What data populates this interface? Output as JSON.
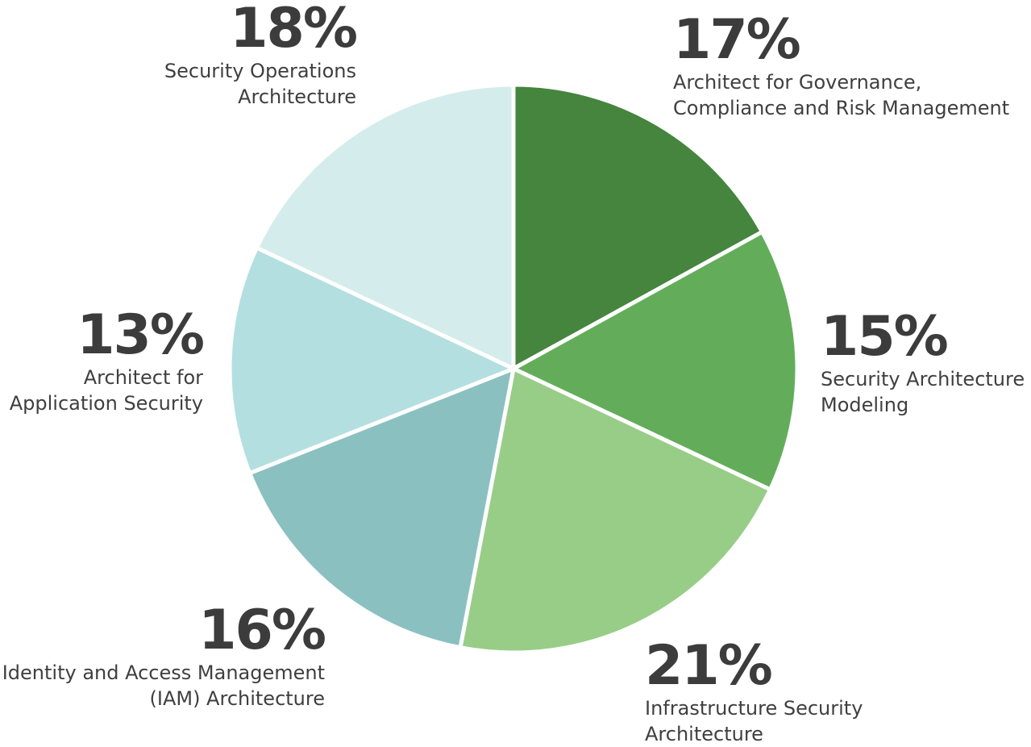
{
  "chart_data": {
    "type": "pie",
    "slices": [
      {
        "percent": 17,
        "value_label": "17%",
        "label": "Architect for Governance,\nCompliance and Risk Management",
        "color": "#45853e"
      },
      {
        "percent": 15,
        "value_label": "15%",
        "label": "Security Architecture\nModeling",
        "color": "#63ad5a"
      },
      {
        "percent": 21,
        "value_label": "21%",
        "label": "Infrastructure Security\nArchitecture",
        "color": "#98cd88"
      },
      {
        "percent": 16,
        "value_label": "16%",
        "label": "Identity and Access Management\n(IAM) Architecture",
        "color": "#8bc0c1"
      },
      {
        "percent": 13,
        "value_label": "13%",
        "label": "Architect for\nApplication Security",
        "color": "#b3dfe0"
      },
      {
        "percent": 18,
        "value_label": "18%",
        "label": "Security Operations\nArchitecture",
        "color": "#d4ecec"
      }
    ],
    "start_angle": "12 o'clock",
    "direction": "clockwise",
    "separator_color": "#ffffff"
  }
}
